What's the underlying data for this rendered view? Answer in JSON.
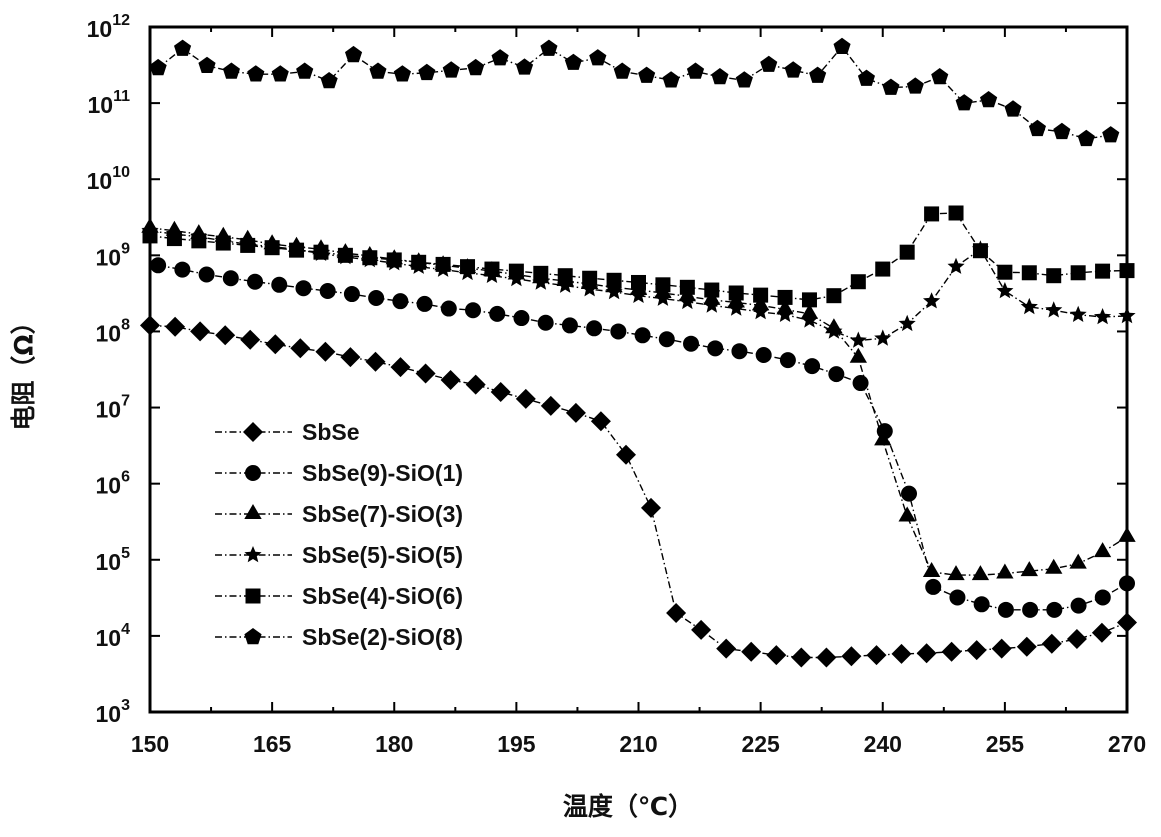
{
  "chart_data": {
    "type": "line",
    "title": "",
    "xlabel": "温度（℃）",
    "ylabel": "电阻（Ω）",
    "xlim": [
      150,
      270
    ],
    "ylim": [
      1000.0,
      1000000000000.0
    ],
    "yscale": "log",
    "x_ticks": [
      150,
      165,
      180,
      195,
      210,
      225,
      240,
      255,
      270
    ],
    "y_tick_exponents": [
      3,
      4,
      5,
      6,
      7,
      8,
      9,
      10,
      11,
      12
    ],
    "y_tick_base": "10",
    "grid": false,
    "legend_position": "bottom-left",
    "series": [
      {
        "name": "SbSe",
        "marker": "diamond",
        "x_range": [
          150,
          270
        ],
        "values": [
          120000000.0,
          115000000.0,
          100000000.0,
          89000000.0,
          78000000.0,
          68000000.0,
          60000000.0,
          54000000.0,
          46000000.0,
          40000000.0,
          34000000.0,
          28000000.0,
          23000000.0,
          20000000.0,
          16000000.0,
          13000000.0,
          10500000.0,
          8500000.0,
          6600000.0,
          2400000.0,
          480000.0,
          20000.0,
          12000.0,
          6800.0,
          6200.0,
          5600.0,
          5200.0,
          5200.0,
          5400.0,
          5600.0,
          5800.0,
          5900.0,
          6200.0,
          6500.0,
          6800.0,
          7200.0,
          7900.0,
          9100.0,
          11000.0,
          15000.0
        ]
      },
      {
        "name": "SbSe(9)-SiO(1)",
        "marker": "circle",
        "x_range": [
          151,
          270
        ],
        "values": [
          740000000.0,
          650000000.0,
          560000000.0,
          500000000.0,
          450000000.0,
          410000000.0,
          370000000.0,
          340000000.0,
          310000000.0,
          275000000.0,
          250000000.0,
          230000000.0,
          200000000.0,
          190000000.0,
          170000000.0,
          150000000.0,
          130000000.0,
          120000000.0,
          110000000.0,
          100000000.0,
          89000000.0,
          79000000.0,
          69000000.0,
          60000000.0,
          55000000.0,
          49000000.0,
          42000000.0,
          35000000.0,
          27500000.0,
          21000000.0,
          4900000.0,
          740000.0,
          44000.0,
          32000.0,
          26000.0,
          22000.0,
          22000.0,
          22000.0,
          25000.0,
          32000.0,
          49000.0
        ]
      },
      {
        "name": "SbSe(7)-SiO(3)",
        "marker": "triangle",
        "x_range": [
          150,
          270
        ],
        "values": [
          2300000000.0,
          2100000000.0,
          1900000000.0,
          1750000000.0,
          1600000000.0,
          1400000000.0,
          1300000000.0,
          1200000000.0,
          1070000000.0,
          980000000.0,
          890000000.0,
          810000000.0,
          740000000.0,
          680000000.0,
          620000000.0,
          560000000.0,
          500000000.0,
          460000000.0,
          420000000.0,
          380000000.0,
          350000000.0,
          320000000.0,
          290000000.0,
          260000000.0,
          240000000.0,
          220000000.0,
          195000000.0,
          170000000.0,
          110000000.0,
          45000000.0,
          3700000.0,
          370000.0,
          69000.0,
          63000.0,
          63000.0,
          66000.0,
          71000.0,
          76000.0,
          89000.0,
          126000.0,
          200000.0
        ]
      },
      {
        "name": "SbSe(5)-SiO(5)",
        "marker": "star",
        "x_range": [
          150,
          270
        ],
        "values": [
          2100000000.0,
          1900000000.0,
          1750000000.0,
          1550000000.0,
          1400000000.0,
          1300000000.0,
          1200000000.0,
          1050000000.0,
          950000000.0,
          870000000.0,
          790000000.0,
          710000000.0,
          650000000.0,
          590000000.0,
          540000000.0,
          490000000.0,
          440000000.0,
          400000000.0,
          360000000.0,
          330000000.0,
          295000000.0,
          270000000.0,
          245000000.0,
          220000000.0,
          200000000.0,
          180000000.0,
          166000000.0,
          140000000.0,
          100000000.0,
          76000000.0,
          81000000.0,
          126000000.0,
          250000000.0,
          710000000.0,
          1200000000.0,
          340000000.0,
          210000000.0,
          190000000.0,
          166000000.0,
          155000000.0,
          160000000.0
        ]
      },
      {
        "name": "SbSe(4)-SiO(6)",
        "marker": "square",
        "x_range": [
          150,
          270
        ],
        "values": [
          1800000000.0,
          1660000000.0,
          1550000000.0,
          1450000000.0,
          1350000000.0,
          1260000000.0,
          1170000000.0,
          1100000000.0,
          1000000000.0,
          930000000.0,
          870000000.0,
          810000000.0,
          760000000.0,
          710000000.0,
          660000000.0,
          620000000.0,
          580000000.0,
          540000000.0,
          500000000.0,
          470000000.0,
          440000000.0,
          410000000.0,
          380000000.0,
          350000000.0,
          320000000.0,
          300000000.0,
          280000000.0,
          260000000.0,
          295000000.0,
          450000000.0,
          660000000.0,
          1100000000.0,
          3500000000.0,
          3600000000.0,
          1150000000.0,
          600000000.0,
          590000000.0,
          540000000.0,
          590000000.0,
          620000000.0,
          630000000.0
        ]
      },
      {
        "name": "SbSe(2)-SiO(8)",
        "marker": "pentagon",
        "x_range": [
          151,
          268
        ],
        "values": [
          290000000000.0,
          520000000000.0,
          310000000000.0,
          260000000000.0,
          240000000000.0,
          240000000000.0,
          260000000000.0,
          195000000000.0,
          430000000000.0,
          260000000000.0,
          240000000000.0,
          250000000000.0,
          270000000000.0,
          290000000000.0,
          390000000000.0,
          295000000000.0,
          520000000000.0,
          340000000000.0,
          390000000000.0,
          260000000000.0,
          230000000000.0,
          200000000000.0,
          260000000000.0,
          220000000000.0,
          200000000000.0,
          320000000000.0,
          270000000000.0,
          230000000000.0,
          550000000000.0,
          210000000000.0,
          160000000000.0,
          166000000000.0,
          220000000000.0,
          100000000000.0,
          110000000000.0,
          83000000000.0,
          46000000000.0,
          42000000000.0,
          34000000000.0,
          38000000000.0
        ]
      }
    ]
  }
}
